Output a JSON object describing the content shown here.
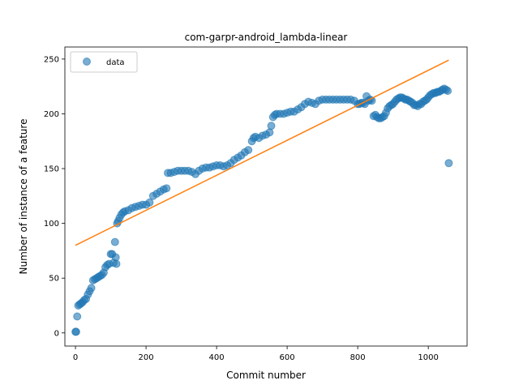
{
  "chart_data": {
    "type": "scatter",
    "title": "com-garpr-android_lambda-linear",
    "xlabel": "Commit number",
    "ylabel": "Number of instance of a feature",
    "xlim": [
      -30,
      1110
    ],
    "ylim": [
      -12,
      261
    ],
    "xticks": [
      0,
      200,
      400,
      600,
      800,
      1000
    ],
    "yticks": [
      0,
      50,
      100,
      150,
      200,
      250
    ],
    "legend": {
      "position": "top-left",
      "entries": [
        "data"
      ]
    },
    "colors": {
      "data": "#1f77b4",
      "fit": "#ff7f0e"
    },
    "series": [
      {
        "name": "data",
        "kind": "scatter",
        "points": [
          [
            0,
            1
          ],
          [
            2,
            1
          ],
          [
            5,
            15
          ],
          [
            8,
            25
          ],
          [
            12,
            26
          ],
          [
            16,
            27
          ],
          [
            20,
            28
          ],
          [
            25,
            30
          ],
          [
            30,
            31
          ],
          [
            35,
            35
          ],
          [
            40,
            38
          ],
          [
            45,
            41
          ],
          [
            50,
            48
          ],
          [
            55,
            49
          ],
          [
            60,
            50
          ],
          [
            65,
            51
          ],
          [
            70,
            52
          ],
          [
            75,
            53
          ],
          [
            80,
            55
          ],
          [
            85,
            60
          ],
          [
            90,
            62
          ],
          [
            95,
            63
          ],
          [
            100,
            72
          ],
          [
            104,
            72
          ],
          [
            108,
            64
          ],
          [
            112,
            83
          ],
          [
            114,
            69
          ],
          [
            116,
            63
          ],
          [
            118,
            100
          ],
          [
            121,
            102
          ],
          [
            125,
            105
          ],
          [
            130,
            108
          ],
          [
            135,
            110
          ],
          [
            140,
            111
          ],
          [
            150,
            112
          ],
          [
            160,
            114
          ],
          [
            170,
            115
          ],
          [
            180,
            116
          ],
          [
            190,
            117
          ],
          [
            200,
            117
          ],
          [
            210,
            119
          ],
          [
            220,
            125
          ],
          [
            230,
            127
          ],
          [
            240,
            129
          ],
          [
            250,
            131
          ],
          [
            258,
            132
          ],
          [
            262,
            146
          ],
          [
            270,
            146
          ],
          [
            280,
            147
          ],
          [
            290,
            148
          ],
          [
            300,
            148
          ],
          [
            310,
            148
          ],
          [
            320,
            148
          ],
          [
            330,
            147
          ],
          [
            340,
            145
          ],
          [
            350,
            148
          ],
          [
            360,
            150
          ],
          [
            370,
            151
          ],
          [
            380,
            151
          ],
          [
            390,
            152
          ],
          [
            400,
            153
          ],
          [
            410,
            153
          ],
          [
            420,
            152
          ],
          [
            430,
            153
          ],
          [
            440,
            155
          ],
          [
            450,
            158
          ],
          [
            460,
            160
          ],
          [
            470,
            162
          ],
          [
            480,
            165
          ],
          [
            490,
            167
          ],
          [
            500,
            175
          ],
          [
            505,
            178
          ],
          [
            510,
            179
          ],
          [
            520,
            178
          ],
          [
            530,
            180
          ],
          [
            540,
            181
          ],
          [
            550,
            183
          ],
          [
            555,
            189
          ],
          [
            560,
            197
          ],
          [
            565,
            199
          ],
          [
            570,
            200
          ],
          [
            580,
            200
          ],
          [
            590,
            200
          ],
          [
            600,
            201
          ],
          [
            610,
            202
          ],
          [
            620,
            202
          ],
          [
            630,
            204
          ],
          [
            640,
            206
          ],
          [
            650,
            209
          ],
          [
            660,
            211
          ],
          [
            670,
            210
          ],
          [
            680,
            209
          ],
          [
            690,
            212
          ],
          [
            700,
            213
          ],
          [
            710,
            213
          ],
          [
            720,
            213
          ],
          [
            730,
            213
          ],
          [
            740,
            213
          ],
          [
            750,
            213
          ],
          [
            760,
            213
          ],
          [
            770,
            213
          ],
          [
            780,
            213
          ],
          [
            790,
            212
          ],
          [
            800,
            209
          ],
          [
            805,
            209
          ],
          [
            810,
            210
          ],
          [
            815,
            210
          ],
          [
            820,
            209
          ],
          [
            825,
            216
          ],
          [
            830,
            212
          ],
          [
            835,
            213
          ],
          [
            840,
            212
          ],
          [
            845,
            198
          ],
          [
            850,
            199
          ],
          [
            855,
            197
          ],
          [
            860,
            196
          ],
          [
            865,
            196
          ],
          [
            870,
            197
          ],
          [
            875,
            198
          ],
          [
            880,
            201
          ],
          [
            885,
            205
          ],
          [
            890,
            207
          ],
          [
            895,
            208
          ],
          [
            900,
            209
          ],
          [
            905,
            211
          ],
          [
            910,
            213
          ],
          [
            915,
            214
          ],
          [
            920,
            215
          ],
          [
            925,
            215
          ],
          [
            930,
            214
          ],
          [
            935,
            213
          ],
          [
            940,
            213
          ],
          [
            945,
            212
          ],
          [
            950,
            211
          ],
          [
            955,
            210
          ],
          [
            960,
            208
          ],
          [
            965,
            208
          ],
          [
            970,
            207
          ],
          [
            975,
            209
          ],
          [
            980,
            209
          ],
          [
            985,
            211
          ],
          [
            990,
            212
          ],
          [
            995,
            213
          ],
          [
            1000,
            215
          ],
          [
            1005,
            217
          ],
          [
            1010,
            218
          ],
          [
            1015,
            219
          ],
          [
            1020,
            219
          ],
          [
            1025,
            220
          ],
          [
            1030,
            220
          ],
          [
            1035,
            221
          ],
          [
            1040,
            222
          ],
          [
            1045,
            223
          ],
          [
            1050,
            222
          ],
          [
            1055,
            221
          ],
          [
            1058,
            155
          ]
        ]
      },
      {
        "name": "",
        "kind": "line",
        "points": [
          [
            0,
            80
          ],
          [
            1058,
            249
          ]
        ]
      }
    ]
  }
}
